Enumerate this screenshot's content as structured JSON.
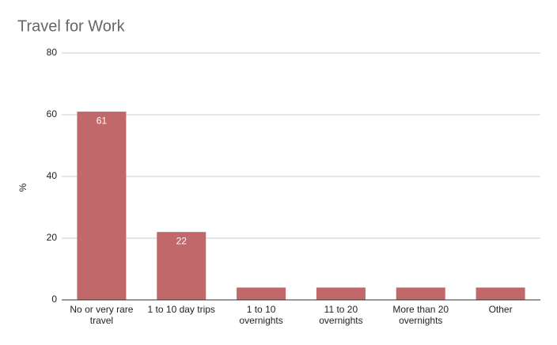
{
  "chart_data": {
    "type": "bar",
    "title": "Travel for Work",
    "y_label": "%",
    "categories": [
      "No or very rare travel",
      "1 to 10 day trips",
      "1 to 10 overnights",
      "11 to 20 overnights",
      "More than 20 overnights",
      "Other"
    ],
    "values": [
      61,
      22,
      4,
      4,
      4,
      4
    ],
    "color": "#c0686a",
    "ylim": [
      0,
      80
    ],
    "yticks": [
      0,
      20,
      40,
      60,
      80
    ],
    "grid": true
  }
}
